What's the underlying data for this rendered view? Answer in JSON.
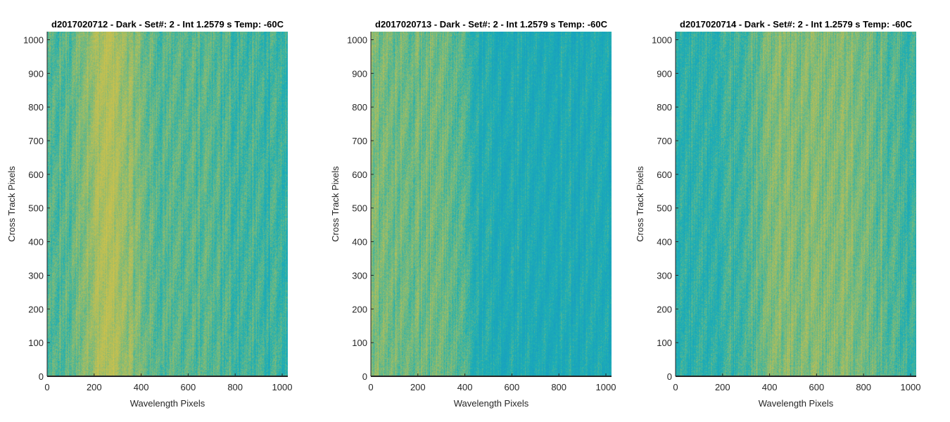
{
  "chart_data": [
    {
      "type": "heatmap",
      "title": "d2017020712 - Dark - Set#: 2 - Int 1.2579 s Temp: -60C",
      "xlabel": "Wavelength Pixels",
      "ylabel": "Cross Track Pixels",
      "xlim": [
        0,
        1024
      ],
      "ylim": [
        0,
        1024
      ],
      "xticks": [
        0,
        200,
        400,
        600,
        800,
        1000
      ],
      "yticks": [
        0,
        100,
        200,
        300,
        400,
        500,
        600,
        700,
        800,
        900,
        1000
      ],
      "colormap": "parula",
      "column_intensity": {
        "x": [
          0,
          100,
          200,
          260,
          350,
          450,
          600,
          800,
          1024
        ],
        "level": [
          0.45,
          0.5,
          0.72,
          0.78,
          0.65,
          0.5,
          0.5,
          0.45,
          0.4
        ]
      }
    },
    {
      "type": "heatmap",
      "title": "d2017020713 - Dark - Set#: 2 - Int 1.2579 s Temp: -60C",
      "xlabel": "Wavelength Pixels",
      "ylabel": "Cross Track Pixels",
      "xlim": [
        0,
        1024
      ],
      "ylim": [
        0,
        1024
      ],
      "xticks": [
        0,
        200,
        400,
        600,
        800,
        1000
      ],
      "yticks": [
        0,
        100,
        200,
        300,
        400,
        500,
        600,
        700,
        800,
        900,
        1000
      ],
      "colormap": "parula",
      "column_intensity": {
        "x": [
          0,
          150,
          300,
          390,
          450,
          600,
          800,
          1024
        ],
        "level": [
          0.6,
          0.55,
          0.55,
          0.5,
          0.32,
          0.3,
          0.3,
          0.28
        ]
      }
    },
    {
      "type": "heatmap",
      "title": "d2017020714 - Dark - Set#: 2 - Int 1.2579 s Temp: -60C",
      "xlabel": "Wavelength Pixels",
      "ylabel": "Cross Track Pixels",
      "xlim": [
        0,
        1024
      ],
      "ylim": [
        0,
        1024
      ],
      "xticks": [
        0,
        200,
        400,
        600,
        800,
        1000
      ],
      "yticks": [
        0,
        100,
        200,
        300,
        400,
        500,
        600,
        700,
        800,
        900,
        1000
      ],
      "colormap": "parula",
      "column_intensity": {
        "x": [
          0,
          150,
          300,
          400,
          550,
          700,
          800,
          950,
          1024
        ],
        "level": [
          0.35,
          0.38,
          0.45,
          0.62,
          0.6,
          0.62,
          0.58,
          0.45,
          0.4
        ]
      }
    }
  ]
}
